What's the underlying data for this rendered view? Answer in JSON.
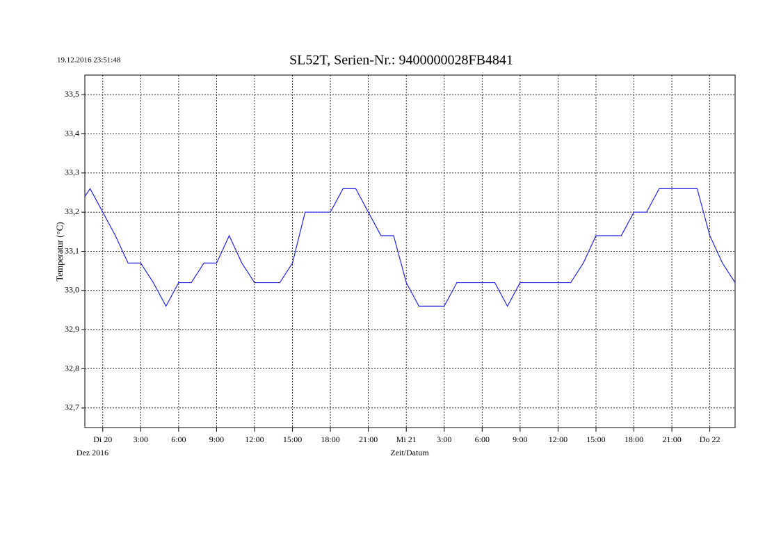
{
  "timestamp": "19.12.2016 23:51:48",
  "chart_data": {
    "type": "line",
    "title": "SL52T,  Serien-Nr.: 9400000028FB4841",
    "x_label": "Zeit/Datum",
    "x_sublabel": "Dez 2016",
    "y_label": "Temperatur (°C)",
    "color": "#2323e6",
    "grid": true,
    "x": [
      "2016-12-19 22:35",
      "2016-12-19 23:00",
      "2016-12-20 00:00",
      "2016-12-20 01:00",
      "2016-12-20 02:00",
      "2016-12-20 03:00",
      "2016-12-20 04:00",
      "2016-12-20 05:00",
      "2016-12-20 06:00",
      "2016-12-20 07:00",
      "2016-12-20 08:00",
      "2016-12-20 09:00",
      "2016-12-20 10:00",
      "2016-12-20 11:00",
      "2016-12-20 12:00",
      "2016-12-20 14:00",
      "2016-12-20 15:00",
      "2016-12-20 16:00",
      "2016-12-20 18:00",
      "2016-12-20 19:00",
      "2016-12-20 20:00",
      "2016-12-20 21:00",
      "2016-12-20 22:00",
      "2016-12-20 23:00",
      "2016-12-21 00:00",
      "2016-12-21 01:00",
      "2016-12-21 03:00",
      "2016-12-21 04:00",
      "2016-12-21 07:00",
      "2016-12-21 08:00",
      "2016-12-21 09:00",
      "2016-12-21 13:00",
      "2016-12-21 14:00",
      "2016-12-21 15:00",
      "2016-12-21 17:00",
      "2016-12-21 18:00",
      "2016-12-21 19:00",
      "2016-12-21 20:00",
      "2016-12-21 23:00",
      "2016-12-22 00:00",
      "2016-12-22 01:00",
      "2016-12-22 02:00"
    ],
    "values": [
      33.24,
      33.26,
      33.2,
      33.14,
      33.07,
      33.07,
      33.02,
      32.96,
      33.02,
      33.02,
      33.07,
      33.07,
      33.14,
      33.07,
      33.02,
      33.02,
      33.07,
      33.2,
      33.2,
      33.26,
      33.26,
      33.2,
      33.14,
      33.14,
      33.02,
      32.96,
      32.96,
      33.02,
      33.02,
      32.96,
      33.02,
      33.02,
      33.07,
      33.14,
      33.14,
      33.2,
      33.2,
      33.26,
      33.26,
      33.14,
      33.07,
      33.02
    ],
    "xlim": [
      "2016-12-19 22:35",
      "2016-12-22 02:00"
    ],
    "ylim": [
      32.65,
      33.55
    ],
    "xticks": [
      {
        "value": "2016-12-20 00:00",
        "label": "Di  20"
      },
      {
        "value": "2016-12-20 03:00",
        "label": "3:00"
      },
      {
        "value": "2016-12-20 06:00",
        "label": "6:00"
      },
      {
        "value": "2016-12-20 09:00",
        "label": "9:00"
      },
      {
        "value": "2016-12-20 12:00",
        "label": "12:00"
      },
      {
        "value": "2016-12-20 15:00",
        "label": "15:00"
      },
      {
        "value": "2016-12-20 18:00",
        "label": "18:00"
      },
      {
        "value": "2016-12-20 21:00",
        "label": "21:00"
      },
      {
        "value": "2016-12-21 00:00",
        "label": "Mi  21"
      },
      {
        "value": "2016-12-21 03:00",
        "label": "3:00"
      },
      {
        "value": "2016-12-21 06:00",
        "label": "6:00"
      },
      {
        "value": "2016-12-21 09:00",
        "label": "9:00"
      },
      {
        "value": "2016-12-21 12:00",
        "label": "12:00"
      },
      {
        "value": "2016-12-21 15:00",
        "label": "15:00"
      },
      {
        "value": "2016-12-21 18:00",
        "label": "18:00"
      },
      {
        "value": "2016-12-21 21:00",
        "label": "21:00"
      },
      {
        "value": "2016-12-22 00:00",
        "label": "Do  22"
      }
    ],
    "yticks": [
      {
        "value": 32.7,
        "label": "32,7"
      },
      {
        "value": 32.8,
        "label": "32,8"
      },
      {
        "value": 32.9,
        "label": "32,9"
      },
      {
        "value": 33.0,
        "label": "33,0"
      },
      {
        "value": 33.1,
        "label": "33,1"
      },
      {
        "value": 33.2,
        "label": "33,2"
      },
      {
        "value": 33.3,
        "label": "33,3"
      },
      {
        "value": 33.4,
        "label": "33,4"
      },
      {
        "value": 33.5,
        "label": "33,5"
      }
    ]
  }
}
